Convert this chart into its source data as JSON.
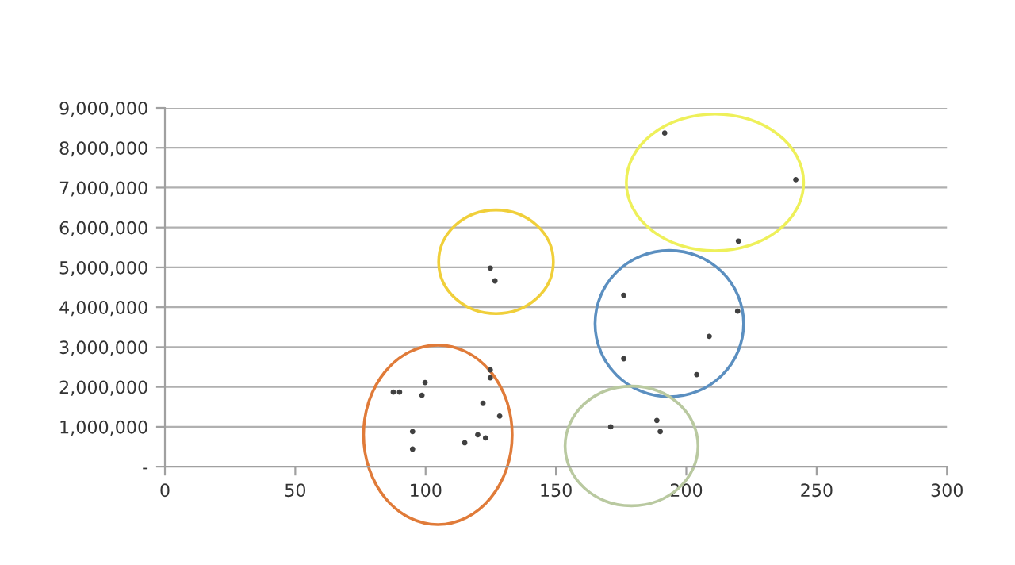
{
  "chart_data": {
    "type": "scatter",
    "color": "#404040",
    "marker": "circle",
    "grid": "y",
    "x": [
      87.6,
      90,
      99.8,
      98.6,
      95,
      95,
      115,
      120,
      123,
      124.8,
      124.8,
      122,
      128.4,
      124.8,
      126.6,
      191.7,
      242,
      220,
      176,
      219.7,
      208.8,
      176,
      204,
      171,
      188.7,
      190
    ],
    "values": [
      1870000,
      1870000,
      2110000,
      1790000,
      880000,
      440000,
      600000,
      800000,
      720000,
      2430000,
      2230000,
      1590000,
      1270000,
      4980000,
      4660000,
      8370000,
      7200000,
      5660000,
      4300000,
      3900000,
      3270000,
      2710000,
      2310000,
      1000000,
      1160000,
      880000
    ],
    "xlim": [
      0,
      300
    ],
    "xticks": [
      0,
      50,
      100,
      150,
      200,
      250,
      300
    ],
    "ylim": [
      0,
      9000000
    ],
    "yticks": [
      {
        "value": 0,
        "label": "-"
      },
      {
        "value": 1000000,
        "label": "1,000,000"
      },
      {
        "value": 2000000,
        "label": "2,000,000"
      },
      {
        "value": 3000000,
        "label": "3,000,000"
      },
      {
        "value": 4000000,
        "label": "4,000,000"
      },
      {
        "value": 5000000,
        "label": "5,000,000"
      },
      {
        "value": 6000000,
        "label": "6,000,000"
      },
      {
        "value": 7000000,
        "label": "7,000,000"
      },
      {
        "value": 8000000,
        "label": "8,000,000"
      },
      {
        "value": 9000000,
        "label": "9,000,000"
      }
    ]
  }
}
